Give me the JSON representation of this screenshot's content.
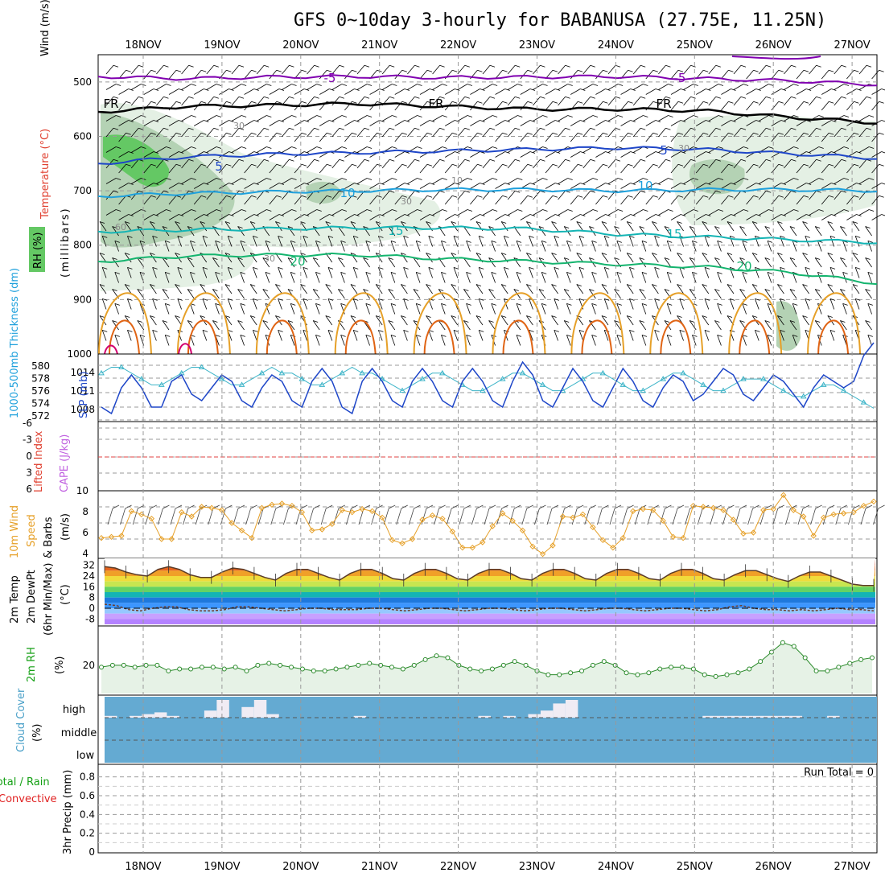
{
  "title": "GFS 0~10day 3-hourly for BABANUSA (27.75E, 11.25N)",
  "dates": [
    "18NOV",
    "19NOV",
    "20NOV",
    "21NOV",
    "22NOV",
    "23NOV",
    "24NOV",
    "25NOV",
    "26NOV",
    "27NOV"
  ],
  "colors": {
    "purple": "#8000b0",
    "blue": "#1e46c8",
    "sky": "#1ea0dc",
    "teal": "#14b4b4",
    "green": "#14b46e",
    "orange": "#e6a028",
    "darkorange": "#e06414",
    "magenta": "#d2006e",
    "rhlight": "#e4f0e4",
    "rhmid": "#b4d2b4",
    "rhdark": "#64c864",
    "cloud": "#64aad2"
  },
  "panels": {
    "upper": {
      "ylabels": {
        "wind": "Wind (m/s)",
        "temp": "Temperature (°C)",
        "rh": "RH (%)",
        "unit": "(millibars)"
      },
      "yticks": [
        "500",
        "600",
        "700",
        "800",
        "900",
        "1000"
      ],
      "contour_labels": [
        {
          "text": "-5"
        },
        {
          "text": "-5"
        },
        {
          "text": "FR"
        },
        {
          "text": "FR"
        },
        {
          "text": "FR"
        },
        {
          "text": "5"
        },
        {
          "text": "5"
        },
        {
          "text": "10"
        },
        {
          "text": "10"
        },
        {
          "text": "15"
        },
        {
          "text": "15"
        },
        {
          "text": "20"
        },
        {
          "text": "20"
        },
        {
          "text": "30"
        },
        {
          "text": "30"
        },
        {
          "text": "30"
        },
        {
          "text": "30"
        },
        {
          "text": "10"
        },
        {
          "text": "60"
        }
      ]
    },
    "slp": {
      "ylabel_thk": "1000-500mb Thickness (dm)",
      "ylabel_slp": "SLP (mb)",
      "thk_ticks": [
        "580",
        "578",
        "576",
        "574",
        "572"
      ],
      "slp_ticks": [
        "1014",
        "1011",
        "1008"
      ]
    },
    "cape": {
      "ylabel_li": "Lifted Index",
      "ylabel_cape": "CAPE (J/kg)",
      "ticks": [
        "-6",
        "-3",
        "0",
        "3",
        "6"
      ]
    },
    "wind10": {
      "ylabel": [
        "10m Wind",
        "Speed",
        "& Barbs"
      ],
      "unit": "(m/s)",
      "ticks": [
        "10",
        "8",
        "6",
        "4"
      ]
    },
    "temp2m": {
      "ylabel": [
        "2m Temp",
        "2m DewPt",
        "(6hr Min/Max)"
      ],
      "unit": "(°C)",
      "ticks": [
        "32",
        "24",
        "16",
        "8",
        "0",
        "-8"
      ]
    },
    "rh2m": {
      "ylabel": "2m RH",
      "unit": "(%)",
      "ticks": [
        "20"
      ]
    },
    "cloud": {
      "ylabel": "Cloud Cover",
      "unit": "(%)",
      "levels": [
        "high",
        "middle",
        "low"
      ]
    },
    "precip": {
      "ylabel_total": "Total / Rain",
      "ylabel_conv": "Convective",
      "ylabel_axis": "3hr Precip (mm)",
      "ticks": [
        "0.8",
        "0.6",
        "0.4",
        "0.2",
        "0"
      ],
      "run_total": "Run Total = 0"
    }
  },
  "chart_data": [
    {
      "type": "line",
      "title": "GFS 0~10day 3-hourly for BABANUSA (27.75E, 11.25N)",
      "note": "Upper-air cross section: temperature contours (°C) vs pressure (mb)",
      "ylim": [
        450,
        1000
      ],
      "series": [
        {
          "name": "-5",
          "values_mb": [
            490,
            494,
            491,
            490,
            492,
            491,
            490,
            494,
            498,
            505
          ]
        },
        {
          "name": "FR",
          "values_mb": [
            555,
            545,
            543,
            540,
            545,
            550,
            550,
            553,
            565,
            575
          ]
        },
        {
          "name": "5",
          "values_mb": [
            650,
            638,
            633,
            630,
            627,
            624,
            621,
            624,
            632,
            640
          ]
        },
        {
          "name": "10",
          "values_mb": [
            710,
            705,
            702,
            700,
            698,
            698,
            700,
            698,
            698,
            700
          ]
        },
        {
          "name": "15",
          "values_mb": [
            775,
            772,
            770,
            768,
            768,
            770,
            780,
            785,
            790,
            795
          ]
        },
        {
          "name": "20",
          "values_mb": [
            830,
            820,
            818,
            818,
            825,
            830,
            835,
            840,
            850,
            870
          ]
        }
      ]
    },
    {
      "type": "line",
      "xlabel": "",
      "ylabel": "SLP (mb)",
      "series": [
        {
          "name": "SLP (mb)",
          "ylim": [
            1006,
            1016
          ],
          "values": [
            1008,
            1007,
            1011,
            1013,
            1011,
            1008,
            1008,
            1012,
            1013,
            1010,
            1009,
            1011,
            1013,
            1012,
            1009,
            1008,
            1011,
            1013,
            1012,
            1009,
            1008,
            1012,
            1014,
            1012,
            1008,
            1007,
            1012,
            1014,
            1012,
            1009,
            1008,
            1012,
            1014,
            1012,
            1009,
            1008,
            1012,
            1014,
            1012,
            1009,
            1008,
            1012,
            1015,
            1013,
            1009,
            1008,
            1011,
            1014,
            1012,
            1009,
            1008,
            1011,
            1014,
            1012,
            1009,
            1008,
            1011,
            1013,
            1012,
            1009,
            1010,
            1012,
            1014,
            1013,
            1010,
            1009,
            1011,
            1013,
            1012,
            1010,
            1008,
            1011,
            1013,
            1012,
            1011,
            1012,
            1016,
            1018
          ]
        },
        {
          "name": "1000-500mb Thickness (dm)",
          "ylim": [
            571,
            582
          ],
          "values": [
            579,
            580,
            580,
            579,
            578,
            577,
            577,
            578,
            579,
            580,
            580,
            579,
            578,
            577,
            577,
            578,
            579,
            580,
            579,
            579,
            578,
            577,
            577,
            578,
            579,
            580,
            579,
            579,
            578,
            577,
            576,
            577,
            578,
            579,
            579,
            578,
            577,
            576,
            576,
            577,
            578,
            579,
            579,
            578,
            577,
            576,
            576,
            577,
            578,
            579,
            579,
            578,
            577,
            576,
            576,
            577,
            578,
            579,
            579,
            578,
            577,
            576,
            576,
            577,
            578,
            578,
            578,
            577,
            576,
            575,
            575,
            576,
            577,
            577,
            576,
            575,
            574,
            573
          ]
        }
      ]
    },
    {
      "type": "line",
      "ylabel": "Lifted Index / CAPE (J/kg)",
      "ylim": [
        -6,
        6
      ],
      "series": [
        {
          "name": "zero line",
          "values": [
            0
          ]
        }
      ]
    },
    {
      "type": "line",
      "ylabel": "10m Wind Speed (m/s)",
      "ylim": [
        4,
        10
      ],
      "series": [
        {
          "name": "10m Wind Speed",
          "values": [
            5.6,
            5.7,
            5.8,
            8.1,
            7.8,
            7.4,
            5.5,
            5.5,
            8.0,
            7.6,
            8.5,
            8.4,
            8.2,
            7.0,
            6.3,
            5.6,
            8.4,
            8.7,
            8.8,
            8.6,
            8.0,
            6.3,
            6.4,
            6.9,
            8.2,
            8.0,
            8.3,
            8.1,
            7.5,
            5.4,
            5.1,
            5.5,
            7.3,
            7.7,
            7.4,
            6.2,
            4.7,
            4.7,
            5.2,
            6.7,
            7.9,
            7.2,
            6.3,
            4.8,
            4.1,
            4.9,
            7.6,
            7.5,
            7.8,
            6.6,
            5.4,
            4.7,
            5.6,
            8.1,
            8.3,
            8.2,
            7.2,
            5.7,
            5.6,
            8.6,
            8.5,
            8.4,
            8.2,
            7.3,
            6.0,
            6.1,
            8.2,
            8.3,
            9.6,
            8.2,
            7.6,
            5.8,
            7.5,
            7.8,
            7.9,
            8.0,
            8.6,
            9.0
          ]
        }
      ]
    },
    {
      "type": "area",
      "ylabel": "2m Temp / 2m DewPt (°C)",
      "ylim": [
        -12,
        36
      ],
      "series": [
        {
          "name": "2m Temp",
          "values": [
            31,
            30,
            27,
            25,
            24,
            29,
            31,
            29,
            25,
            23,
            23,
            27,
            30,
            29,
            26,
            23,
            21,
            26,
            29,
            29,
            26,
            23,
            21,
            26,
            29,
            29,
            26,
            22,
            21,
            26,
            29,
            29,
            26,
            22,
            21,
            26,
            29,
            29,
            26,
            22,
            21,
            26,
            29,
            29,
            26,
            22,
            21,
            26,
            29,
            29,
            26,
            22,
            21,
            26,
            29,
            29,
            26,
            22,
            21,
            25,
            28,
            28,
            25,
            22,
            20,
            24,
            27,
            27,
            24,
            21,
            18,
            17,
            17
          ]
        },
        {
          "name": "2m DewPt",
          "values": [
            3,
            2,
            -1,
            -2,
            0,
            1,
            1,
            -1,
            -2,
            -2,
            -1,
            1,
            1,
            0,
            -1,
            -2,
            -1,
            0,
            0,
            -1,
            -1,
            -1,
            0,
            0,
            -1,
            -2,
            -1,
            0,
            0,
            -1,
            -2,
            -1,
            0,
            0,
            -1,
            -2,
            -1,
            0,
            0,
            -1,
            -2,
            -1,
            0,
            0,
            -1,
            -2,
            -1,
            0,
            0,
            -1,
            -2,
            -1,
            1,
            2,
            0,
            -1,
            -1,
            -2,
            -1,
            -2,
            -1,
            0,
            -1,
            -1,
            -2
          ]
        }
      ]
    },
    {
      "type": "area",
      "ylabel": "2m RH (%)",
      "ylim": [
        5,
        40
      ],
      "series": [
        {
          "name": "2m RH",
          "values": [
            19,
            20,
            20,
            19,
            20,
            20,
            17,
            18,
            18,
            19,
            19,
            18,
            19,
            17,
            20,
            21,
            20,
            19,
            18,
            17,
            17,
            18,
            19,
            20,
            21,
            20,
            19,
            18,
            20,
            23,
            25,
            24,
            20,
            18,
            17,
            18,
            20,
            22,
            20,
            17,
            15,
            15,
            16,
            17,
            20,
            22,
            20,
            16,
            15,
            16,
            18,
            19,
            19,
            18,
            15,
            14,
            15,
            16,
            18,
            22,
            27,
            32,
            30,
            24,
            17,
            17,
            19,
            21,
            23,
            24
          ]
        }
      ]
    },
    {
      "type": "bar",
      "ylabel": "Cloud Cover (%)",
      "series": [
        {
          "name": "high",
          "values": [
            10,
            0,
            10,
            20,
            30,
            10,
            0,
            0,
            40,
            100,
            0,
            60,
            100,
            20,
            0,
            0,
            0,
            0,
            0,
            0,
            10,
            0,
            0,
            0,
            0,
            0,
            0,
            0,
            0,
            0,
            10,
            0,
            10,
            0,
            20,
            40,
            80,
            100,
            0,
            0,
            0,
            0,
            0,
            0,
            0,
            0,
            0,
            0,
            10,
            10,
            10,
            10,
            10,
            10,
            10,
            10,
            0,
            0,
            10,
            0,
            0,
            0
          ]
        }
      ]
    },
    {
      "type": "bar",
      "ylabel": "3hr Precip (mm)",
      "ylim": [
        0,
        0.9
      ],
      "series": [
        {
          "name": "Total / Rain",
          "values": [
            0
          ]
        },
        {
          "name": "Convective",
          "values": [
            0
          ]
        }
      ]
    }
  ]
}
